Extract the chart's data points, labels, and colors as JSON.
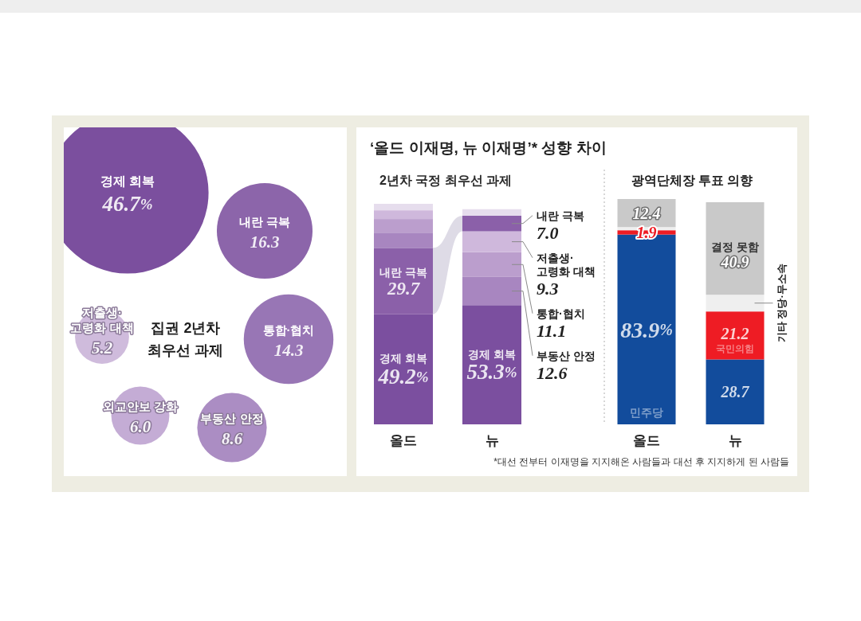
{
  "chart_data": [
    {
      "type": "other",
      "title": "집권 2년차\n최우선 과제",
      "categories": [
        "경제 회복",
        "내란 극복",
        "통합·협치",
        "부동산 안정",
        "외교안보 강화",
        "저출생·\n고령화 대책"
      ],
      "values": [
        46.7,
        16.3,
        14.3,
        8.6,
        6.0,
        5.2
      ],
      "value_labels": [
        "46.7%",
        "16.3",
        "14.3",
        "8.6",
        "6.0",
        "5.2"
      ],
      "colors": [
        "#7b4f9e",
        "#8c65aa",
        "#9876b5",
        "#ab8dc3",
        "#c4acd5",
        "#cfbbdc"
      ]
    },
    {
      "type": "bar",
      "stacked": true,
      "title": "‘올드 이재명, 뉴 이재명’* 성향 차이",
      "subtitle": "2년차 국정 최우선 과제",
      "categories": [
        "올드",
        "뉴"
      ],
      "series": [
        {
          "name": "경제 회복",
          "color": "#7b4f9f",
          "values": [
            49.2,
            53.3
          ],
          "value_labels": [
            "49.2%",
            "53.3%"
          ]
        },
        {
          "name": "내란 극복",
          "color": "#8b60a9",
          "values": [
            29.7,
            null
          ],
          "value_labels": [
            "29.7",
            null
          ]
        },
        {
          "name": "부동산 안정",
          "color": "#a886c0",
          "values": [
            6.8,
            12.6
          ],
          "value_labels": [
            null,
            "12.6"
          ]
        },
        {
          "name": "통합·협치",
          "color": "#bb9ecd",
          "values": [
            6.1,
            11.1
          ],
          "value_labels": [
            null,
            "11.1"
          ]
        },
        {
          "name": "저출생·\n고령화 대책",
          "color": "#cfb8dc",
          "values": [
            3.9,
            9.3
          ],
          "value_labels": [
            null,
            "9.3"
          ]
        },
        {
          "name": "내란 극복",
          "color": "#8b60a9",
          "values": [
            null,
            7.0
          ],
          "value_labels": [
            null,
            "7.0"
          ]
        },
        {
          "color": "#e6dded",
          "values": [
            2.9,
            2.9
          ]
        }
      ]
    },
    {
      "type": "bar",
      "stacked": true,
      "title": "광역단체장 투표 의향",
      "categories": [
        "올드",
        "뉴"
      ],
      "series": [
        {
          "name": "민주당",
          "color": "#124c9c",
          "values": [
            83.9,
            28.7
          ],
          "value_labels": [
            "83.9%",
            "28.7"
          ]
        },
        {
          "name": "국민의힘",
          "color": "#ee1c24",
          "values": [
            1.9,
            21.2
          ],
          "value_labels": [
            "1.9",
            "21.2"
          ]
        },
        {
          "name": "기타 정당·무소속",
          "color": "#efefef",
          "values": [
            1.4,
            7.4
          ]
        },
        {
          "name": "결정 못함",
          "color": "#c9c9c9",
          "values": [
            12.4,
            40.9
          ],
          "value_labels": [
            "12.4",
            "40.9"
          ]
        }
      ],
      "annotations": [
        "*대선 전부터 이재명을 지지해온 사람들과 대선 후 지지하게 된 사람들"
      ]
    }
  ]
}
